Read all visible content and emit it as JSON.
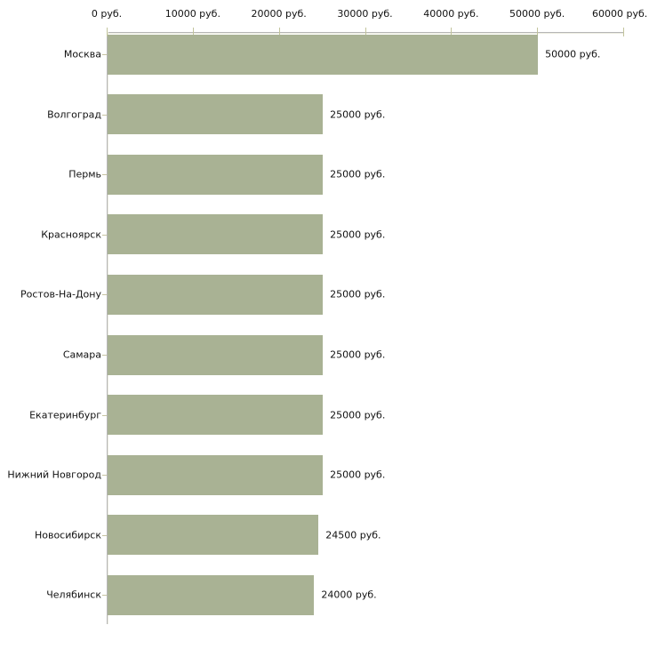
{
  "chart_data": {
    "type": "bar",
    "orientation": "horizontal",
    "title": "",
    "xlabel": "",
    "ylabel": "",
    "unit": "руб.",
    "xlim": [
      0,
      60000
    ],
    "grid": false,
    "legend": false,
    "categories": [
      "Москва",
      "Волгоград",
      "Пермь",
      "Красноярск",
      "Ростов-На-Дону",
      "Самара",
      "Екатеринбург",
      "Нижний Новгород",
      "Новосибирск",
      "Челябинск"
    ],
    "values": [
      50000,
      25000,
      25000,
      25000,
      25000,
      25000,
      25000,
      25000,
      24500,
      24000
    ],
    "value_labels": [
      "50000 руб.",
      "25000 руб.",
      "25000 руб.",
      "25000 руб.",
      "25000 руб.",
      "25000 руб.",
      "25000 руб.",
      "25000 руб.",
      "24500 руб.",
      "24000 руб."
    ],
    "x_ticks": [
      {
        "value": 0,
        "label": "0 руб."
      },
      {
        "value": 10000,
        "label": "10000 руб."
      },
      {
        "value": 20000,
        "label": "20000 руб."
      },
      {
        "value": 30000,
        "label": "30000 руб."
      },
      {
        "value": 40000,
        "label": "40000 руб."
      },
      {
        "value": 50000,
        "label": "50000 руб."
      },
      {
        "value": 60000,
        "label": "60000 руб."
      }
    ],
    "colors": {
      "bar": "#a9b294",
      "axis": "#b6b6b6",
      "axis_highlight": "#ecece0",
      "x_tick": "#c2c49c",
      "category_tick": "#c6c3a0",
      "text": "#111111",
      "background": "#ffffff"
    }
  }
}
